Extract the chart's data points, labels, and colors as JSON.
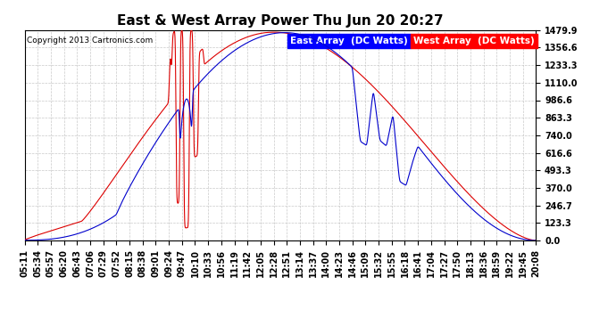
{
  "title": "East & West Array Power Thu Jun 20 20:27",
  "copyright": "Copyright 2013 Cartronics.com",
  "legend_east": "East Array  (DC Watts)",
  "legend_west": "West Array  (DC Watts)",
  "east_color": "#0000cc",
  "west_color": "#dd0000",
  "bg_color": "#ffffff",
  "plot_bg_color": "#ffffff",
  "grid_color": "#bbbbbb",
  "yticks": [
    0.0,
    123.3,
    246.7,
    370.0,
    493.3,
    616.6,
    740.0,
    863.3,
    986.6,
    1110.0,
    1233.3,
    1356.6,
    1479.9
  ],
  "ylim": [
    0.0,
    1479.9
  ],
  "title_fontsize": 11,
  "tick_fontsize": 7,
  "legend_fontsize": 7.5,
  "xtick_labels": [
    "05:11",
    "05:34",
    "05:57",
    "06:20",
    "06:43",
    "07:06",
    "07:29",
    "07:52",
    "08:15",
    "08:38",
    "09:01",
    "09:24",
    "09:47",
    "10:10",
    "10:33",
    "10:56",
    "11:19",
    "11:42",
    "12:05",
    "12:28",
    "12:51",
    "13:14",
    "13:37",
    "14:00",
    "14:23",
    "14:46",
    "15:09",
    "15:32",
    "15:55",
    "16:18",
    "16:41",
    "17:04",
    "17:27",
    "17:50",
    "18:13",
    "18:36",
    "18:59",
    "19:22",
    "19:45",
    "20:08"
  ]
}
